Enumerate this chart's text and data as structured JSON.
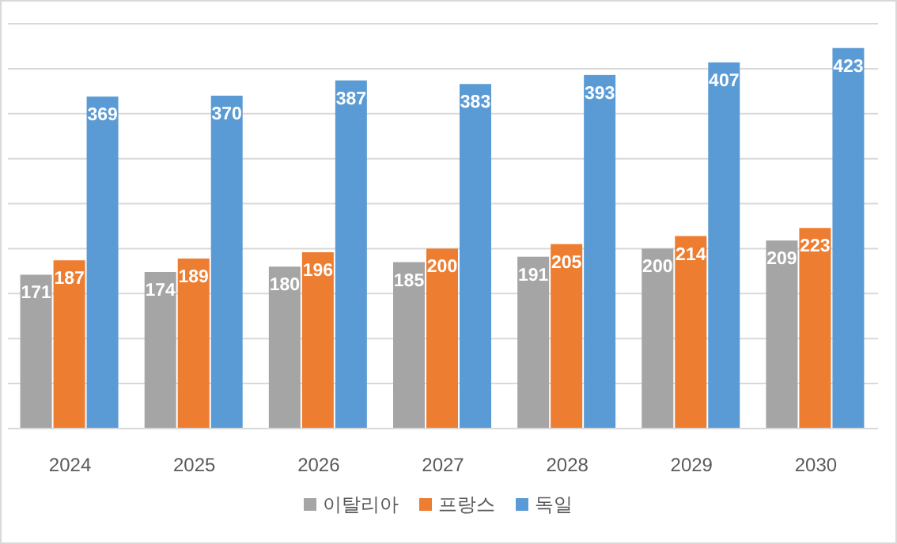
{
  "chart_data": {
    "type": "bar",
    "categories": [
      "2024",
      "2025",
      "2026",
      "2027",
      "2028",
      "2029",
      "2030"
    ],
    "series": [
      {
        "name": "이탈리아",
        "color": "#a5a5a5",
        "values": [
          171,
          174,
          180,
          185,
          191,
          200,
          209
        ]
      },
      {
        "name": "프랑스",
        "color": "#ed7d31",
        "values": [
          187,
          189,
          196,
          200,
          205,
          214,
          223
        ]
      },
      {
        "name": "독일",
        "color": "#5b9bd5",
        "values": [
          369,
          370,
          387,
          383,
          393,
          407,
          423
        ]
      }
    ],
    "ylim": [
      0,
      450
    ],
    "yticks": [
      {
        "value": 0,
        "label": null
      },
      {
        "value": 50,
        "label": null
      },
      {
        "value": 100,
        "label": null
      },
      {
        "value": 150,
        "label": null
      },
      {
        "value": 200,
        "label": null
      },
      {
        "value": 250,
        "label": null
      },
      {
        "value": 300,
        "label": null
      },
      {
        "value": 350,
        "label": null
      },
      {
        "value": 400,
        "label": null
      },
      {
        "value": 450,
        "label": null
      }
    ],
    "grid": "y",
    "tick_labels": "x",
    "data_labels": true,
    "legend": "bottom"
  }
}
